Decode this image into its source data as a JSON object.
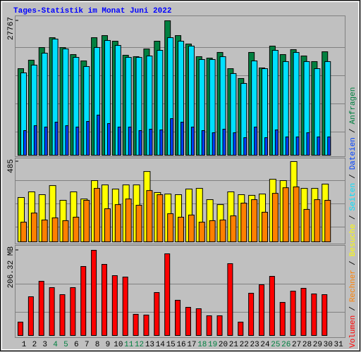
{
  "title": "Tages-Statistik im Monat Juni 2022",
  "legend_separator": "/",
  "chart_data": [
    {
      "type": "bar",
      "ylim": [
        0,
        27767
      ],
      "yticks": [
        27767
      ],
      "series": [
        {
          "name": "Anfragen",
          "color": "#008040",
          "values": [
            17880,
            19630,
            22240,
            24280,
            22240,
            20790,
            19480,
            24280,
            24710,
            23550,
            20650,
            20360,
            21950,
            23550,
            27767,
            24710,
            22970,
            20360,
            20060,
            21230,
            17880,
            15850,
            21230,
            18030,
            22540,
            20790,
            21810,
            20500,
            19340,
            21370,
            null
          ]
        },
        {
          "name": "Dateien",
          "color": "#0040ff",
          "values": [
            5090,
            6110,
            5820,
            6830,
            6110,
            5820,
            6980,
            8290,
            6540,
            5820,
            5820,
            5090,
            5380,
            5230,
            7560,
            6830,
            5820,
            5090,
            4650,
            5380,
            4650,
            3630,
            5820,
            3630,
            5230,
            3780,
            3780,
            4650,
            3780,
            3780,
            null
          ]
        },
        {
          "name": "Seiten",
          "color": "#00e0ff",
          "values": [
            17010,
            18610,
            21080,
            23990,
            21960,
            20210,
            18320,
            22250,
            23700,
            22680,
            20210,
            20210,
            20500,
            21660,
            24280,
            23550,
            22540,
            19770,
            19770,
            20360,
            16870,
            14830,
            19480,
            17880,
            21660,
            19340,
            21230,
            19340,
            17880,
            19340,
            null
          ]
        }
      ]
    },
    {
      "type": "bar",
      "ylim": [
        0,
        485
      ],
      "yticks": [
        485
      ],
      "series": [
        {
          "name": "Besuche",
          "color": "#ffff00",
          "values": [
            268,
            302,
            285,
            340,
            251,
            302,
            259,
            370,
            344,
            319,
            344,
            344,
            425,
            298,
            289,
            285,
            319,
            323,
            255,
            225,
            302,
            285,
            281,
            289,
            378,
            370,
            485,
            323,
            323,
            349,
            null
          ]
        },
        {
          "name": "Rechner",
          "color": "#ff8000",
          "values": [
            119,
            174,
            132,
            145,
            128,
            149,
            251,
            323,
            200,
            225,
            259,
            221,
            310,
            285,
            170,
            149,
            162,
            119,
            128,
            132,
            157,
            234,
            255,
            179,
            293,
            327,
            332,
            196,
            255,
            251,
            null
          ]
        }
      ]
    },
    {
      "type": "bar",
      "ylim": [
        0,
        206.32
      ],
      "yticks": [
        {
          "value": 206.32,
          "label": "206.32 MB"
        }
      ],
      "categories": [
        "1",
        "2",
        "3",
        "4",
        "5",
        "6",
        "7",
        "8",
        "9",
        "10",
        "11",
        "12",
        "13",
        "14",
        "15",
        "16",
        "17",
        "18",
        "19",
        "20",
        "21",
        "22",
        "23",
        "24",
        "25",
        "26",
        "27",
        "28",
        "29",
        "30",
        "31"
      ],
      "category_colors": [
        "#000000",
        "#000000",
        "#000000",
        "#008040",
        "#008040",
        "#000000",
        "#000000",
        "#000000",
        "#000000",
        "#000000",
        "#008040",
        "#008040",
        "#000000",
        "#000000",
        "#000000",
        "#000000",
        "#000000",
        "#008040",
        "#008040",
        "#000000",
        "#000000",
        "#000000",
        "#000000",
        "#000000",
        "#008040",
        "#008040",
        "#000000",
        "#000000",
        "#000000",
        "#000000",
        "#000000"
      ],
      "series": [
        {
          "name": "Volumen",
          "color": "#ff0000",
          "values": [
            32.4,
            93.8,
            131.3,
            115.9,
            98.9,
            115.9,
            167.1,
            206.32,
            172.2,
            144.9,
            141.5,
            51.2,
            49.4,
            104,
            197.8,
            85.3,
            68.2,
            64.8,
            47.7,
            47.7,
            173.9,
            32.4,
            102.3,
            122.8,
            143.2,
            80.1,
            107.4,
            114.2,
            100.6,
            98.9,
            null
          ]
        }
      ]
    }
  ]
}
